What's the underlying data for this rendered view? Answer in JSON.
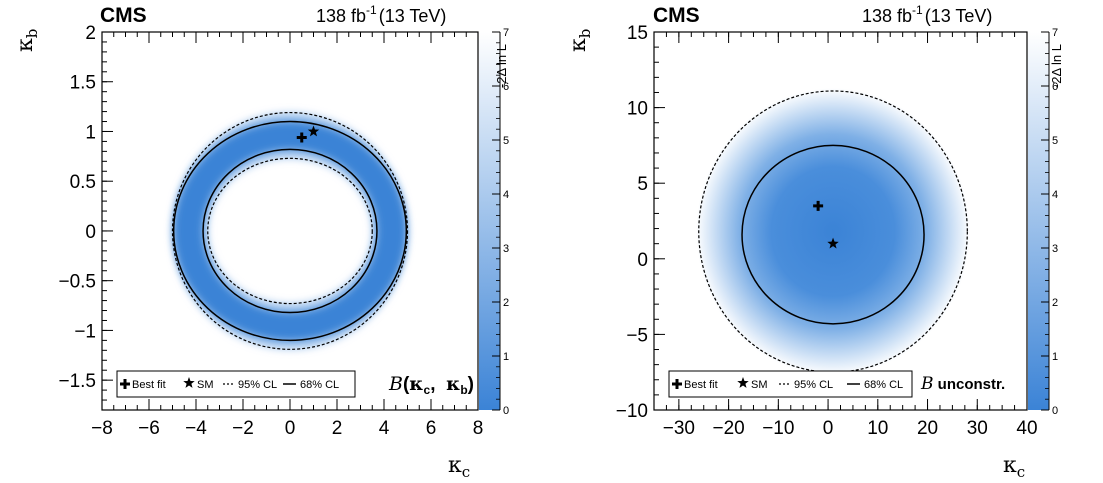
{
  "chart_data": [
    {
      "type": "heatmap",
      "experiment": "CMS",
      "lumi": "138 fb",
      "lumi_sup": "-1",
      "energy": "(13 TeV)",
      "xlabel": "κ",
      "xlabel_sub": "c",
      "ylabel": "κ",
      "ylabel_sub": "b",
      "xlim": [
        -8,
        8
      ],
      "ylim": [
        -1.8,
        2
      ],
      "xticks": [
        "−8",
        "−6",
        "−4",
        "−2",
        "0",
        "2",
        "4",
        "6",
        "8"
      ],
      "xtick_values": [
        -8,
        -6,
        -4,
        -2,
        0,
        2,
        4,
        6,
        8
      ],
      "yticks": [
        "−1.5",
        "−1",
        "−0.5",
        "0",
        "0.5",
        "1",
        "1.5",
        "2"
      ],
      "ytick_values": [
        -1.5,
        -1,
        -0.5,
        0,
        0.5,
        1,
        1.5,
        2
      ],
      "colorbar": {
        "label": "-2Δ ln L",
        "zlim": [
          0,
          7
        ],
        "ticks": [
          "0",
          "1",
          "2",
          "3",
          "4",
          "5",
          "6",
          "7"
        ],
        "tick_values": [
          0,
          1,
          2,
          3,
          4,
          5,
          6,
          7
        ],
        "color_min": "#3b83d6",
        "color_max": "#ffffff"
      },
      "annotation": {
        "italic_prefix": "B",
        "open": "(",
        "k1": "κ",
        "k1_sub": "c",
        "sep": ",  ",
        "k2": "κ",
        "k2_sub": "b",
        "close": ")"
      },
      "legend": {
        "position": "bottom-left",
        "entries": [
          {
            "marker": "cross",
            "label": "Best fit"
          },
          {
            "marker": "star",
            "label": "SM"
          },
          {
            "marker": "dashed-line",
            "label": "95% CL"
          },
          {
            "marker": "solid-line",
            "label": "68% CL"
          }
        ]
      },
      "best_fit": {
        "x": 0.5,
        "y": 0.94
      },
      "sm_point": {
        "x": 1.0,
        "y": 1.0
      },
      "contours": {
        "cl95_outer": {
          "cx": 0.0,
          "cy": 0.0,
          "rx": 5.0,
          "ry": 1.19
        },
        "cl68_outer": {
          "cx": 0.0,
          "cy": 0.0,
          "rx": 4.95,
          "ry": 1.1
        },
        "cl68_inner": {
          "cx": 0.0,
          "cy": 0.0,
          "rx": 3.7,
          "ry": 0.82
        },
        "cl95_inner": {
          "cx": 0.0,
          "cy": 0.0,
          "rx": 3.5,
          "ry": 0.73
        }
      }
    },
    {
      "type": "heatmap",
      "experiment": "CMS",
      "lumi": "138 fb",
      "lumi_sup": "-1",
      "energy": "(13 TeV)",
      "xlabel": "κ",
      "xlabel_sub": "c",
      "ylabel": "κ",
      "ylabel_sub": "b",
      "xlim": [
        -35,
        40
      ],
      "ylim": [
        -10,
        15
      ],
      "xticks": [
        "−30",
        "−20",
        "−10",
        "0",
        "10",
        "20",
        "30",
        "40"
      ],
      "xtick_values": [
        -30,
        -20,
        -10,
        0,
        10,
        20,
        30,
        40
      ],
      "yticks": [
        "−10",
        "−5",
        "0",
        "5",
        "10",
        "15"
      ],
      "ytick_values": [
        -10,
        -5,
        0,
        5,
        10,
        15
      ],
      "colorbar": {
        "label": "-2Δ ln L",
        "zlim": [
          0,
          7
        ],
        "ticks": [
          "0",
          "1",
          "2",
          "3",
          "4",
          "5",
          "6",
          "7"
        ],
        "tick_values": [
          0,
          1,
          2,
          3,
          4,
          5,
          6,
          7
        ],
        "color_min": "#3b83d6",
        "color_max": "#ffffff"
      },
      "annotation": {
        "italic_prefix": "B",
        "text": " unconstr."
      },
      "legend": {
        "position": "bottom-left",
        "entries": [
          {
            "marker": "cross",
            "label": "Best fit"
          },
          {
            "marker": "star",
            "label": "SM"
          },
          {
            "marker": "dashed-line",
            "label": "95% CL"
          },
          {
            "marker": "solid-line",
            "label": "68% CL"
          }
        ]
      },
      "best_fit": {
        "x": -2.0,
        "y": 3.5
      },
      "sm_point": {
        "x": 1.0,
        "y": 1.0
      },
      "contours": {
        "cl68": {
          "cx": 1.0,
          "cy": 1.6,
          "rx": 18.3,
          "ry": 5.9
        },
        "cl95": {
          "cx": 1.0,
          "cy": 1.8,
          "rx": 27.0,
          "ry": 9.3
        }
      }
    }
  ]
}
